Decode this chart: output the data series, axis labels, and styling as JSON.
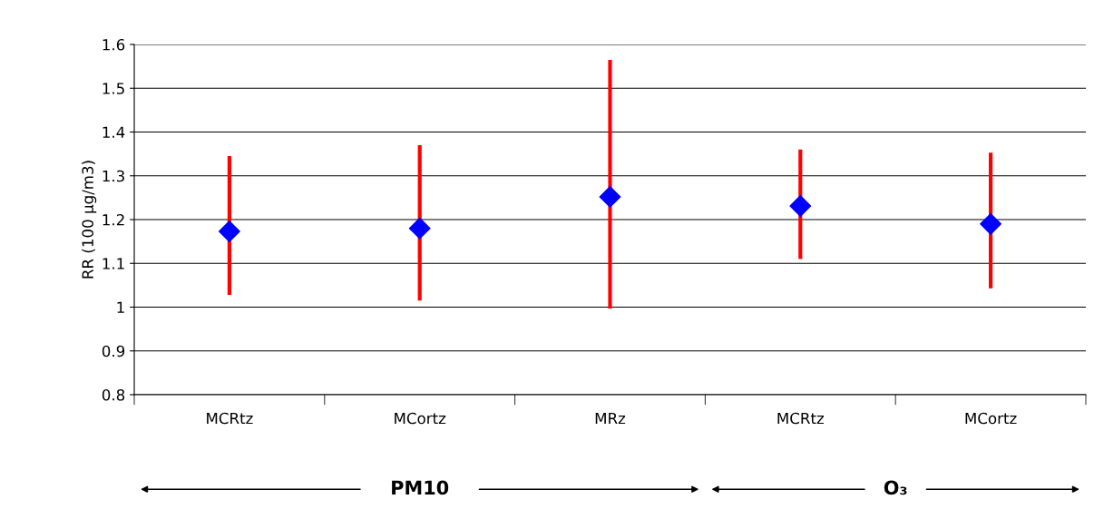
{
  "chart_data": {
    "type": "scatter",
    "ylabel": "RR (100 µg/m3)",
    "categories": [
      "MCRtz",
      "MCortz",
      "MRz",
      "MCRtz",
      "MCortz"
    ],
    "series": [
      {
        "color": "#0000ff",
        "values": [
          1.173,
          1.18,
          1.252,
          1.231,
          1.19
        ],
        "errors": [
          [
            1.028,
            1.345
          ],
          [
            1.015,
            1.37
          ],
          [
            0.997,
            1.565
          ],
          [
            1.11,
            1.36
          ],
          [
            1.043,
            1.353
          ]
        ]
      }
    ],
    "ylim": [
      0.8,
      1.6
    ],
    "yticks": [
      0.8,
      0.9,
      1,
      1.1,
      1.2,
      1.3,
      1.4,
      1.5,
      1.6
    ],
    "grid": "y",
    "marker": "diamond",
    "annotations": [
      "PM10",
      "O₃"
    ]
  }
}
